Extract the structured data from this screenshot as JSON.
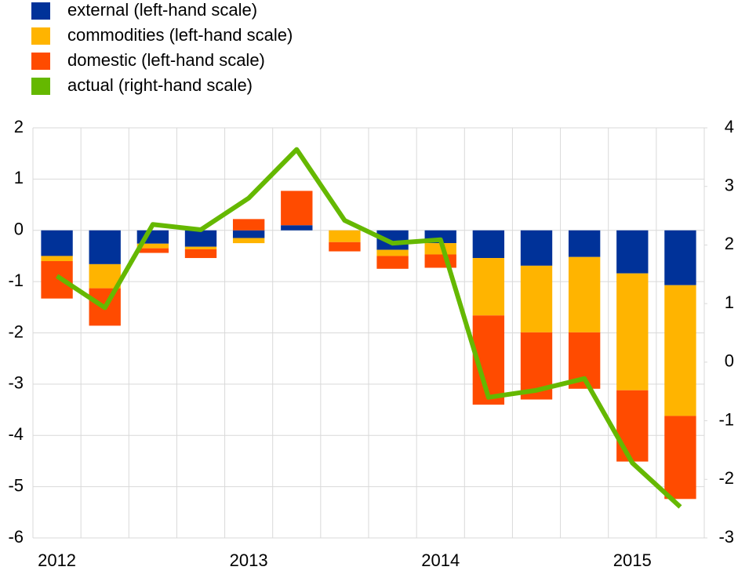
{
  "chart_data": {
    "type": "bar",
    "stacked": true,
    "categories": [
      "2012",
      null,
      null,
      null,
      "2013",
      null,
      null,
      null,
      "2014",
      null,
      null,
      null,
      "2015",
      null
    ],
    "series": [
      {
        "name": "external (left-hand scale)",
        "color": "#003299",
        "values": [
          -0.5,
          -0.66,
          -0.26,
          -0.32,
          -0.15,
          0.1,
          0,
          -0.38,
          -0.25,
          -0.54,
          -0.69,
          -0.52,
          -0.84,
          -1.07
        ]
      },
      {
        "name": "commodities (left-hand scale)",
        "color": "#ffb400",
        "values": [
          -0.1,
          -0.47,
          -0.09,
          -0.05,
          -0.1,
          0,
          -0.23,
          -0.12,
          -0.22,
          -1.12,
          -1.3,
          -1.47,
          -2.28,
          -2.55
        ]
      },
      {
        "name": "domestic (left-hand scale)",
        "color": "#ff4b00",
        "values": [
          -0.73,
          -0.73,
          -0.09,
          -0.17,
          0.22,
          0.67,
          -0.18,
          -0.25,
          -0.26,
          -1.74,
          -1.31,
          -1.1,
          -1.39,
          -1.62
        ]
      },
      {
        "name": "actual (right-hand scale)",
        "color": "#65b800",
        "type": "line",
        "axis": "y2",
        "values": [
          1.47,
          0.93,
          2.35,
          2.26,
          2.8,
          3.63,
          2.42,
          2.03,
          2.09,
          -0.6,
          -0.48,
          -0.28,
          -1.72,
          -2.47
        ]
      }
    ],
    "ylim": [
      -6,
      2
    ],
    "yticks": [
      2,
      1,
      0,
      -1,
      -2,
      -3,
      -4,
      -5,
      -6
    ],
    "y2lim": [
      -3,
      4
    ],
    "y2ticks": [
      4,
      3,
      2,
      1,
      0,
      -1,
      -2,
      -3
    ],
    "grid": true,
    "legend": "top-left"
  }
}
